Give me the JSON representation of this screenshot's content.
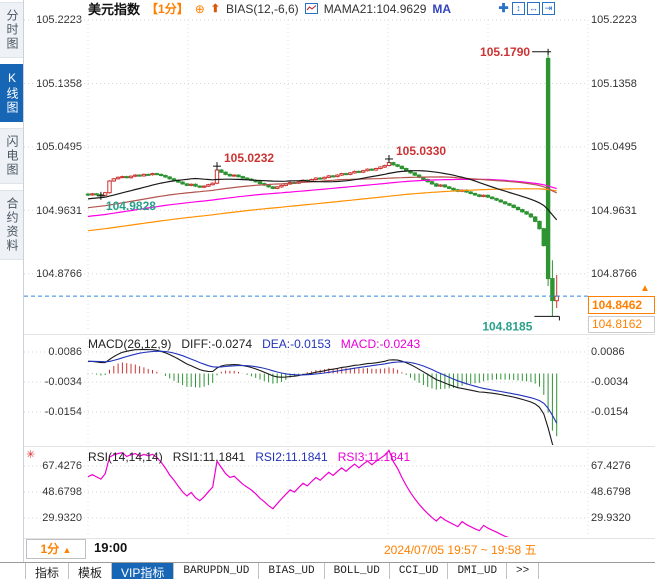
{
  "header": {
    "title": "美元指数",
    "timeframe": "【1分】",
    "bias_label": "BIAS(12,-6,6)",
    "mama_label": "MAMA21:104.9629",
    "ma_label": "MA"
  },
  "icons": {
    "add": "⊕",
    "trend_up": "⬆",
    "move": "✚",
    "fit_y": "↕",
    "fit_x": "↔",
    "shift_right": "⇥",
    "settings": "✳",
    "dropdown": "▲",
    "price_up": "▲"
  },
  "sidebar": {
    "items": [
      {
        "label": "分时图",
        "selected": false
      },
      {
        "label": "K线图",
        "selected": true
      },
      {
        "label": "闪电图",
        "selected": false
      },
      {
        "label": "合约资料",
        "selected": false
      }
    ]
  },
  "price_panel": {
    "axis_ticks": [
      "105.2223",
      "105.1358",
      "105.0495",
      "104.9631",
      "104.8766"
    ],
    "current_price": "104.8462",
    "secondary_price": "104.8162"
  },
  "macd_panel": {
    "name": "MACD(26,12,9)",
    "diff_label": "DIFF:-0.0274",
    "dea_label": "DEA:-0.0153",
    "macd_label": "MACD:-0.0243",
    "axis_ticks": [
      "0.0086",
      "-0.0034",
      "-0.0154"
    ]
  },
  "rsi_panel": {
    "name": "RSI(14,14,14)",
    "rsi1_label": "RSI1:11.1841",
    "rsi2_label": "RSI2:11.1841",
    "rsi3_label": "RSI3:11.1841",
    "axis_ticks": [
      "67.4276",
      "48.6798",
      "29.9320"
    ]
  },
  "footer": {
    "timeframe_selector": "1分",
    "time_label": "19:00",
    "date_range": "2024/07/05 19:57 ~ 19:58 五"
  },
  "tabs": [
    {
      "label": "指标"
    },
    {
      "label": "模板"
    },
    {
      "label": "VIP指标",
      "selected": true
    },
    {
      "label": "BARUPDN_UD"
    },
    {
      "label": "BIAS_UD"
    },
    {
      "label": "BOLL_UD"
    },
    {
      "label": "CCI_UD"
    },
    {
      "label": "DMI_UD"
    },
    {
      "label": ">>"
    }
  ],
  "colors": {
    "accent_orange": "#ff8000",
    "up_red": "#cc3333",
    "down_green": "#2e9433",
    "teal_label": "#2aa08a",
    "ma_black": "#1a1a1a",
    "ma_red": "#b2554e",
    "ma_magenta": "#ff00e6",
    "ma_orange": "#ff9000",
    "dea_blue": "#2233bb",
    "rsi_magenta": "#f000d0",
    "dash_blue": "#2f86e0",
    "selected_blue": "#1766b5"
  },
  "chart_data": {
    "type": "candlestick",
    "symbol": "美元指数",
    "timeframe": "1分",
    "closes": [
      104.984,
      104.9855,
      104.9845,
      104.9835,
      104.987,
      105.003,
      105.006,
      105.008,
      105.009,
      105.0075,
      105.0095,
      105.011,
      105.01,
      105.012,
      105.0115,
      105.013,
      105.012,
      105.0105,
      105.0085,
      105.006,
      105.004,
      105.0015,
      104.999,
      104.997,
      104.9985,
      104.996,
      104.9945,
      104.996,
      104.998,
      105.0,
      105.018,
      105.015,
      105.012,
      105.01,
      105.011,
      105.009,
      105.007,
      105.0055,
      105.004,
      105.002,
      104.9995,
      104.9975,
      104.995,
      104.993,
      104.995,
      104.997,
      104.999,
      105.001,
      105.0,
      105.002,
      105.004,
      105.003,
      105.005,
      105.007,
      105.006,
      105.008,
      105.01,
      105.009,
      105.011,
      105.013,
      105.012,
      105.014,
      105.016,
      105.015,
      105.017,
      105.019,
      105.018,
      105.02,
      105.022,
      105.024,
      105.028,
      105.025,
      105.023,
      105.02,
      105.017,
      105.014,
      105.011,
      105.008,
      105.005,
      105.002,
      104.999,
      104.996,
      104.9975,
      104.995,
      104.993,
      104.991,
      104.989,
      104.9905,
      104.988,
      104.986,
      104.984,
      104.982,
      104.9835,
      104.981,
      104.979,
      104.977,
      104.9745,
      104.972,
      104.97,
      104.967,
      104.964,
      104.961,
      104.958,
      104.954,
      104.948,
      104.938,
      104.915,
      104.87,
      104.84,
      104.8462
    ],
    "special_bars": [
      {
        "index": 107,
        "o": 105.17,
        "h": 105.179,
        "l": 104.86,
        "c": 104.87
      },
      {
        "index": 108,
        "o": 104.87,
        "h": 104.895,
        "l": 104.8185,
        "c": 104.84
      },
      {
        "index": 109,
        "o": 104.84,
        "h": 104.875,
        "l": 104.83,
        "c": 104.8462
      }
    ],
    "wick_overrides": {
      "3": {
        "l": 104.9828
      },
      "30": {
        "h": 105.0232
      },
      "70": {
        "h": 105.033
      }
    },
    "price_gridlines": [
      105.2223,
      105.1358,
      105.0495,
      104.9631,
      104.8766
    ],
    "current_price": 104.8462,
    "secondary_price": 104.8162,
    "ma_windows": {
      "black": 21,
      "red": 55,
      "magenta": 89,
      "orange": 144
    },
    "macd_params": [
      26,
      12,
      9
    ],
    "macd_gridlines": [
      0.0086,
      -0.0034,
      -0.0154
    ],
    "macd_last": {
      "diff": -0.0274,
      "dea": -0.0153,
      "macd": -0.0243
    },
    "rsi_params": [
      14,
      14,
      14
    ],
    "rsi_gridlines": [
      67.4276,
      48.6798,
      29.932
    ],
    "rsi_last": 11.1841,
    "annotations": [
      {
        "text": "105.0232",
        "price": 105.0232,
        "bar": 30,
        "kind": "high"
      },
      {
        "text": "105.0330",
        "price": 105.033,
        "bar": 70,
        "kind": "high"
      },
      {
        "text": "105.1790",
        "price": 105.179,
        "bar": 107,
        "kind": "high-left"
      },
      {
        "text": "104.8185",
        "price": 104.8185,
        "bar": 108,
        "kind": "low-left"
      },
      {
        "text": "104.9828",
        "price": 104.9828,
        "bar": 3,
        "kind": "low"
      }
    ],
    "pre_history": {
      "start": 104.88,
      "end": 104.985,
      "count": 150,
      "zigzag": 0.0015
    }
  }
}
